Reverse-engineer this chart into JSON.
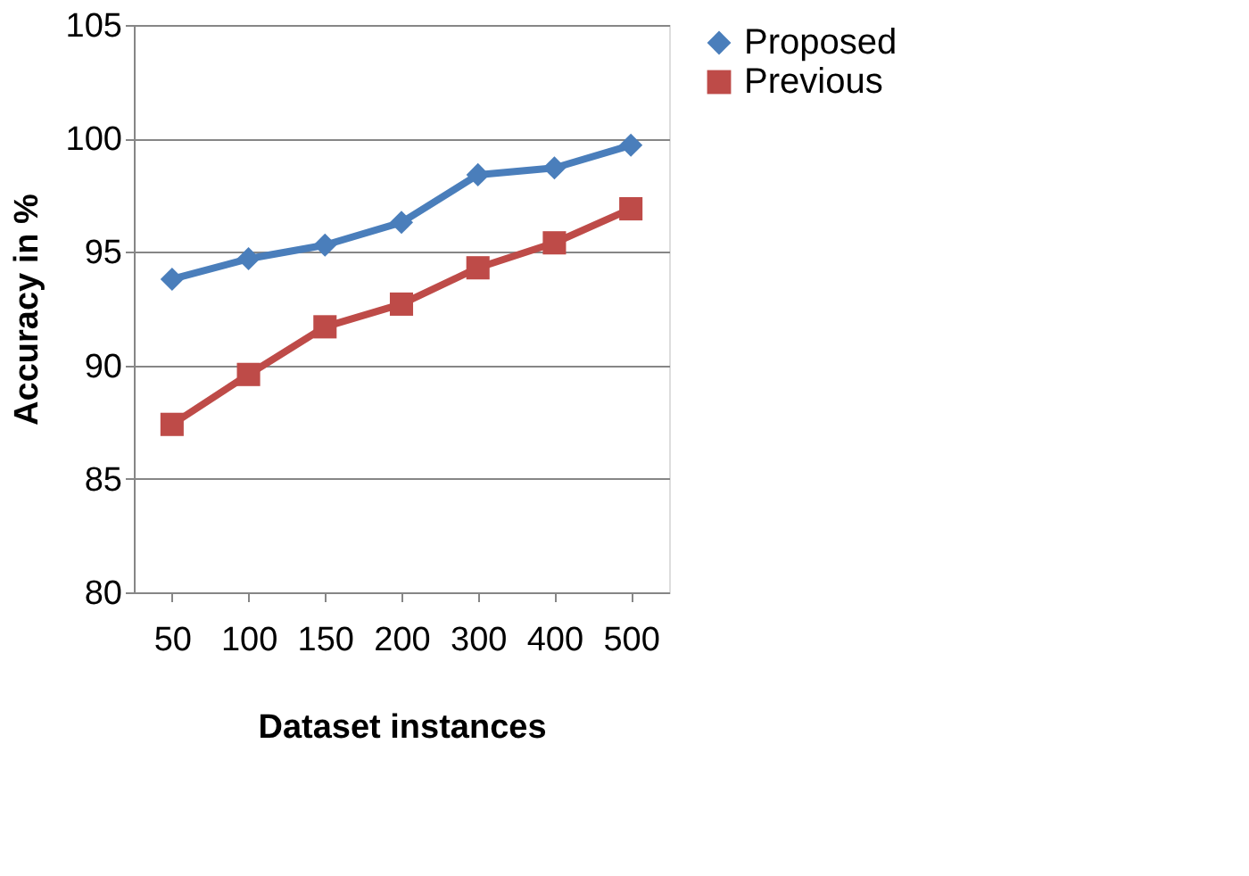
{
  "chart_data": {
    "type": "line",
    "xlabel": "Dataset instances",
    "ylabel": "Accuracy in %",
    "categories": [
      "50",
      "100",
      "150",
      "200",
      "300",
      "400",
      "500"
    ],
    "series": [
      {
        "name": "Proposed",
        "color": "#4a7ebb",
        "marker": "diamond",
        "values": [
          93.8,
          94.7,
          95.3,
          96.3,
          98.4,
          98.7,
          99.7
        ]
      },
      {
        "name": "Previous",
        "color": "#be4b48",
        "marker": "square",
        "values": [
          87.4,
          89.6,
          91.7,
          92.7,
          94.3,
          95.4,
          96.9
        ]
      }
    ],
    "ylim": [
      80,
      105
    ],
    "yticks": [
      80,
      85,
      90,
      95,
      100,
      105
    ],
    "grid": "y",
    "legend": "right"
  }
}
